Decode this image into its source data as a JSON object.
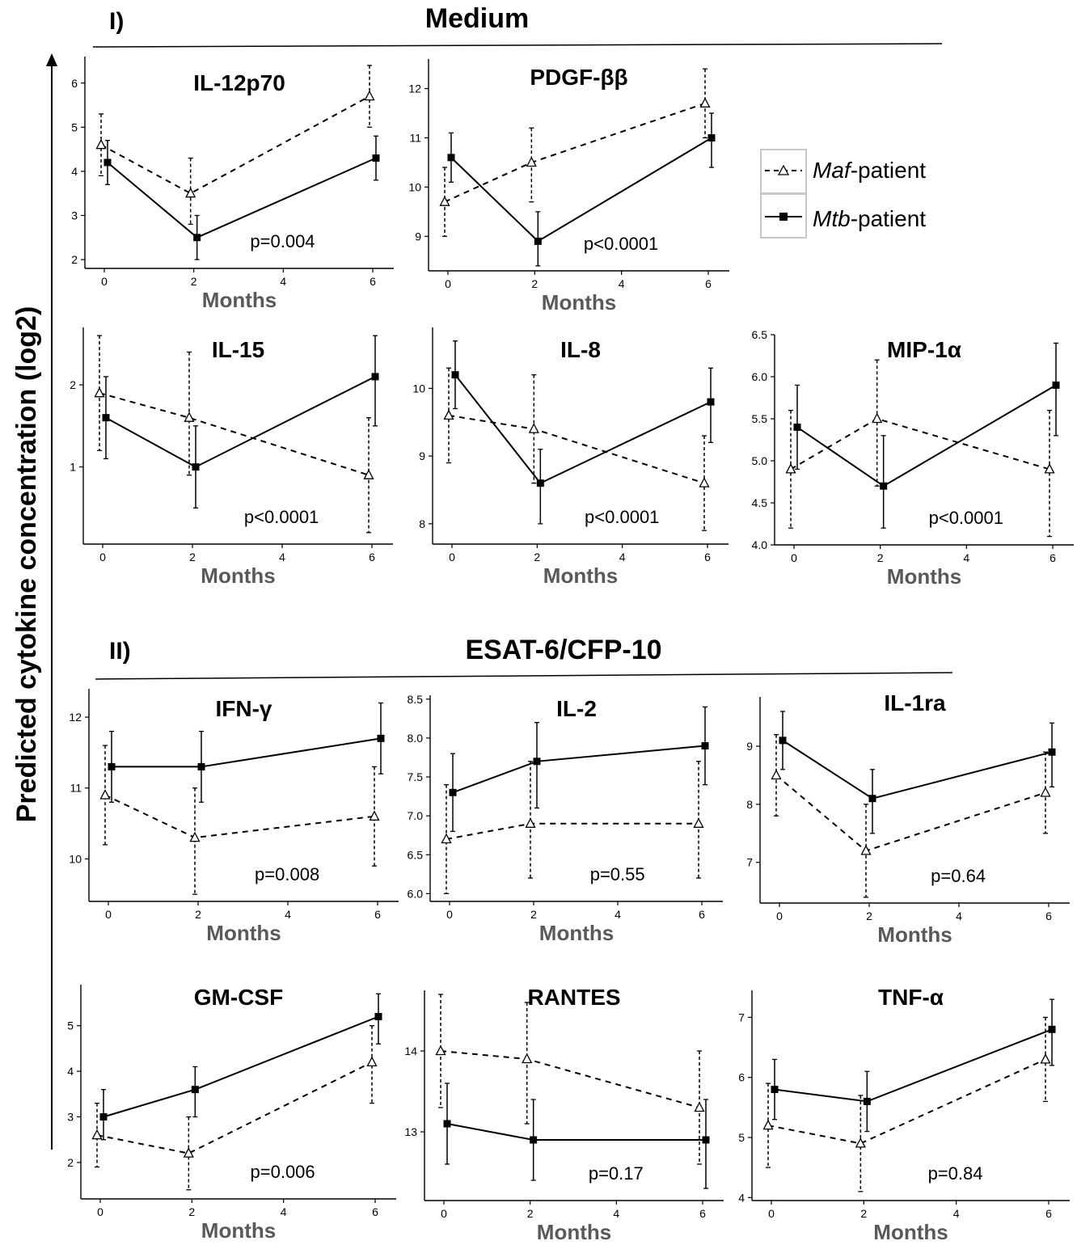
{
  "figure": {
    "section1_label": "I)",
    "section1_title": "Medium",
    "section2_label": "II)",
    "section2_title": "ESAT-6/CFP-10",
    "y_axis_label": "Predicted cytokine concentration (log2)"
  },
  "legend": {
    "maf": {
      "italic": "Maf",
      "rest": "-patient"
    },
    "mtb": {
      "italic": "Mtb",
      "rest": "-patient"
    }
  },
  "chart_data": [
    {
      "type": "line",
      "title": "IL-12p70",
      "xlabel": "Months",
      "ylabel": "",
      "x": [
        0,
        2,
        6
      ],
      "xticks": [
        0,
        2,
        4,
        6
      ],
      "yticks": [
        2,
        3,
        4,
        5,
        6
      ],
      "ylim": [
        1.8,
        6.6
      ],
      "series": [
        {
          "name": "Maf-patient",
          "values": [
            4.6,
            3.5,
            5.7
          ],
          "lower": [
            3.9,
            2.8,
            5.0
          ],
          "upper": [
            5.3,
            4.3,
            6.4
          ]
        },
        {
          "name": "Mtb-patient",
          "values": [
            4.2,
            2.5,
            4.3
          ],
          "lower": [
            3.7,
            2.0,
            3.8
          ],
          "upper": [
            4.7,
            3.0,
            4.8
          ]
        }
      ],
      "annotation": "p=0.004"
    },
    {
      "type": "line",
      "title": "PDGF-ββ",
      "xlabel": "Months",
      "ylabel": "",
      "x": [
        0,
        2,
        6
      ],
      "xticks": [
        0,
        2,
        4,
        6
      ],
      "yticks": [
        9,
        10,
        11,
        12
      ],
      "ylim": [
        8.3,
        12.6
      ],
      "series": [
        {
          "name": "Maf-patient",
          "values": [
            9.7,
            10.5,
            11.7
          ],
          "lower": [
            9.0,
            9.7,
            11.0
          ],
          "upper": [
            10.4,
            11.2,
            12.4
          ]
        },
        {
          "name": "Mtb-patient",
          "values": [
            10.6,
            8.9,
            11.0
          ],
          "lower": [
            10.1,
            8.4,
            10.4
          ],
          "upper": [
            11.1,
            9.5,
            11.5
          ]
        }
      ],
      "annotation": "p<0.0001"
    },
    {
      "type": "line",
      "title": "IL-15",
      "xlabel": "Months",
      "ylabel": "",
      "x": [
        0,
        2,
        6
      ],
      "xticks": [
        0,
        2,
        4,
        6
      ],
      "yticks": [
        1,
        2
      ],
      "ylim": [
        0.06,
        2.7
      ],
      "series": [
        {
          "name": "Maf-patient",
          "values": [
            1.9,
            1.6,
            0.9
          ],
          "lower": [
            1.2,
            0.9,
            0.2
          ],
          "upper": [
            2.6,
            2.4,
            1.6
          ]
        },
        {
          "name": "Mtb-patient",
          "values": [
            1.6,
            1.0,
            2.1
          ],
          "lower": [
            1.1,
            0.5,
            1.5
          ],
          "upper": [
            2.1,
            1.5,
            2.6
          ]
        }
      ],
      "annotation": "p<0.0001"
    },
    {
      "type": "line",
      "title": "IL-8",
      "xlabel": "Months",
      "ylabel": "",
      "x": [
        0,
        2,
        6
      ],
      "xticks": [
        0,
        2,
        4,
        6
      ],
      "yticks": [
        8,
        9,
        10
      ],
      "ylim": [
        7.7,
        10.9
      ],
      "series": [
        {
          "name": "Maf-patient",
          "values": [
            9.6,
            9.4,
            8.6
          ],
          "lower": [
            8.9,
            8.6,
            7.9
          ],
          "upper": [
            10.3,
            10.2,
            9.3
          ]
        },
        {
          "name": "Mtb-patient",
          "values": [
            10.2,
            8.6,
            9.8
          ],
          "lower": [
            9.7,
            8.0,
            9.2
          ],
          "upper": [
            10.7,
            9.1,
            10.3
          ]
        }
      ],
      "annotation": "p<0.0001"
    },
    {
      "type": "line",
      "title": "MIP-1α",
      "xlabel": "Months",
      "ylabel": "",
      "x": [
        0,
        2,
        6
      ],
      "xticks": [
        0,
        2,
        4,
        6
      ],
      "yticks": [
        "4.0",
        "4.5",
        "5.0",
        "5.5",
        "6.0",
        "6.5"
      ],
      "ylim": [
        4.0,
        6.5
      ],
      "series": [
        {
          "name": "Maf-patient",
          "values": [
            4.9,
            5.5,
            4.9
          ],
          "lower": [
            4.2,
            4.7,
            4.1
          ],
          "upper": [
            5.6,
            6.2,
            5.6
          ]
        },
        {
          "name": "Mtb-patient",
          "values": [
            5.4,
            4.7,
            5.9
          ],
          "lower": [
            4.9,
            4.2,
            5.3
          ],
          "upper": [
            5.9,
            5.3,
            6.4
          ]
        }
      ],
      "annotation": "p<0.0001"
    },
    {
      "type": "line",
      "title": "IFN-γ",
      "xlabel": "Months",
      "ylabel": "",
      "x": [
        0,
        2,
        6
      ],
      "xticks": [
        0,
        2,
        4,
        6
      ],
      "yticks": [
        10,
        11,
        12
      ],
      "ylim": [
        9.4,
        12.4
      ],
      "series": [
        {
          "name": "Maf-patient",
          "values": [
            10.9,
            10.3,
            10.6
          ],
          "lower": [
            10.2,
            9.5,
            9.9
          ],
          "upper": [
            11.6,
            11.0,
            11.3
          ]
        },
        {
          "name": "Mtb-patient",
          "values": [
            11.3,
            11.3,
            11.7
          ],
          "lower": [
            10.8,
            10.8,
            11.2
          ],
          "upper": [
            11.8,
            11.8,
            12.2
          ]
        }
      ],
      "annotation": "p=0.008"
    },
    {
      "type": "line",
      "title": "IL-2",
      "xlabel": "Months",
      "ylabel": "",
      "x": [
        0,
        2,
        6
      ],
      "xticks": [
        0,
        2,
        4,
        6
      ],
      "yticks": [
        "6.0",
        "6.5",
        "7.0",
        "7.5",
        "8.0",
        "8.5"
      ],
      "ylim": [
        5.9,
        8.55
      ],
      "series": [
        {
          "name": "Maf-patient",
          "values": [
            6.7,
            6.9,
            6.9
          ],
          "lower": [
            6.0,
            6.2,
            6.2
          ],
          "upper": [
            7.4,
            7.7,
            7.7
          ]
        },
        {
          "name": "Mtb-patient",
          "values": [
            7.3,
            7.7,
            7.9
          ],
          "lower": [
            6.8,
            7.1,
            7.4
          ],
          "upper": [
            7.8,
            8.2,
            8.4
          ]
        }
      ],
      "annotation": "p=0.55"
    },
    {
      "type": "line",
      "title": "IL-1ra",
      "xlabel": "Months",
      "ylabel": "",
      "x": [
        0,
        2,
        6
      ],
      "xticks": [
        0,
        2,
        4,
        6
      ],
      "yticks": [
        7,
        8,
        9
      ],
      "ylim": [
        6.3,
        9.85
      ],
      "series": [
        {
          "name": "Maf-patient",
          "values": [
            8.5,
            7.2,
            8.2
          ],
          "lower": [
            7.8,
            6.4,
            7.5
          ],
          "upper": [
            9.2,
            8.0,
            8.9
          ]
        },
        {
          "name": "Mtb-patient",
          "values": [
            9.1,
            8.1,
            8.9
          ],
          "lower": [
            8.6,
            7.5,
            8.3
          ],
          "upper": [
            9.6,
            8.6,
            9.4
          ]
        }
      ],
      "annotation": "p=0.64"
    },
    {
      "type": "line",
      "title": "GM-CSF",
      "xlabel": "Months",
      "ylabel": "",
      "x": [
        0,
        2,
        6
      ],
      "xticks": [
        0,
        2,
        4,
        6
      ],
      "yticks": [
        2,
        3,
        4,
        5
      ],
      "ylim": [
        1.2,
        5.9
      ],
      "series": [
        {
          "name": "Maf-patient",
          "values": [
            2.6,
            2.2,
            4.2
          ],
          "lower": [
            1.9,
            1.4,
            3.3
          ],
          "upper": [
            3.3,
            3.0,
            5.0
          ]
        },
        {
          "name": "Mtb-patient",
          "values": [
            3.0,
            3.6,
            5.2
          ],
          "lower": [
            2.5,
            3.0,
            4.6
          ],
          "upper": [
            3.6,
            4.1,
            5.7
          ]
        }
      ],
      "annotation": "p=0.006"
    },
    {
      "type": "line",
      "title": "RANTES",
      "xlabel": "Months",
      "ylabel": "",
      "x": [
        0,
        2,
        6
      ],
      "xticks": [
        0,
        2,
        4,
        6
      ],
      "yticks": [
        13,
        14
      ],
      "ylim": [
        12.15,
        14.75
      ],
      "series": [
        {
          "name": "Maf-patient",
          "values": [
            14.0,
            13.9,
            13.3
          ],
          "lower": [
            13.3,
            13.1,
            12.6
          ],
          "upper": [
            14.7,
            14.6,
            14.0
          ]
        },
        {
          "name": "Mtb-patient",
          "values": [
            13.1,
            12.9,
            12.9
          ],
          "lower": [
            12.6,
            12.4,
            12.3
          ],
          "upper": [
            13.6,
            13.4,
            13.4
          ]
        }
      ],
      "annotation": "p=0.17"
    },
    {
      "type": "line",
      "title": "TNF-α",
      "xlabel": "Months",
      "ylabel": "",
      "x": [
        0,
        2,
        6
      ],
      "xticks": [
        0,
        2,
        4,
        6
      ],
      "yticks": [
        4,
        5,
        6,
        7
      ],
      "ylim": [
        3.95,
        7.45
      ],
      "series": [
        {
          "name": "Maf-patient",
          "values": [
            5.2,
            4.9,
            6.3
          ],
          "lower": [
            4.5,
            4.1,
            5.6
          ],
          "upper": [
            5.9,
            5.7,
            7.0
          ]
        },
        {
          "name": "Mtb-patient",
          "values": [
            5.8,
            5.6,
            6.8
          ],
          "lower": [
            5.3,
            5.1,
            6.2
          ],
          "upper": [
            6.3,
            6.1,
            7.3
          ]
        }
      ],
      "annotation": "p=0.84"
    }
  ]
}
